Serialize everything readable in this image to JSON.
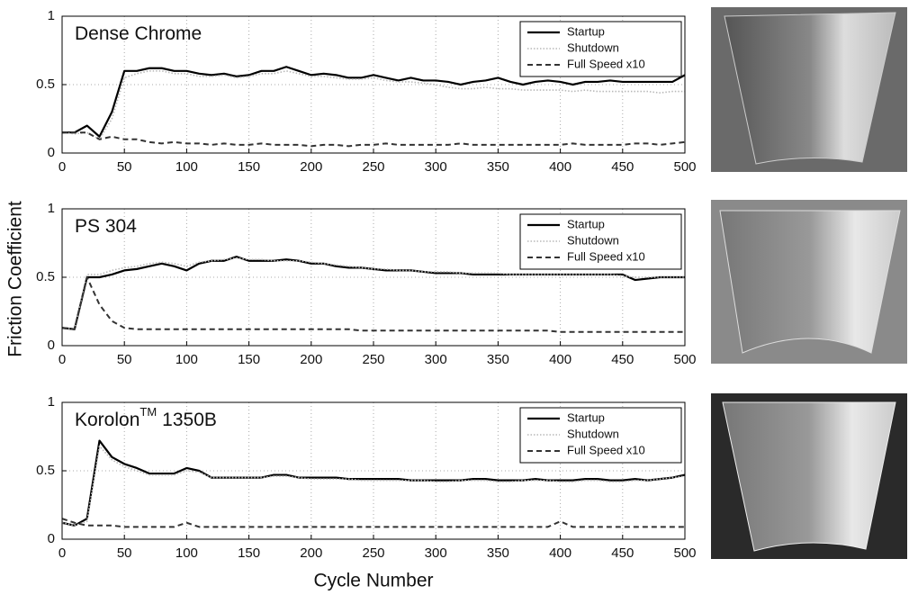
{
  "labels": {
    "xlabel": "Cycle Number",
    "ylabel": "Friction Coefficient"
  },
  "chart_data": [
    {
      "type": "line",
      "title": "Dense Chrome",
      "x": [
        0,
        10,
        20,
        30,
        40,
        50,
        60,
        70,
        80,
        90,
        100,
        110,
        120,
        130,
        140,
        150,
        160,
        170,
        180,
        190,
        200,
        210,
        220,
        230,
        240,
        250,
        260,
        270,
        280,
        290,
        300,
        310,
        320,
        330,
        340,
        350,
        360,
        370,
        380,
        390,
        400,
        410,
        420,
        430,
        440,
        450,
        460,
        470,
        480,
        490,
        500
      ],
      "series": [
        {
          "name": "Startup",
          "color": "#000000",
          "style": "solid",
          "values": [
            0.15,
            0.15,
            0.2,
            0.12,
            0.3,
            0.6,
            0.6,
            0.62,
            0.62,
            0.6,
            0.6,
            0.58,
            0.57,
            0.58,
            0.56,
            0.57,
            0.6,
            0.6,
            0.63,
            0.6,
            0.57,
            0.58,
            0.57,
            0.55,
            0.55,
            0.57,
            0.55,
            0.53,
            0.55,
            0.53,
            0.53,
            0.52,
            0.5,
            0.52,
            0.53,
            0.55,
            0.52,
            0.5,
            0.52,
            0.53,
            0.52,
            0.5,
            0.52,
            0.52,
            0.53,
            0.52,
            0.52,
            0.52,
            0.52,
            0.52,
            0.57
          ]
        },
        {
          "name": "Shutdown",
          "color": "#b8b8b8",
          "style": "dotted",
          "values": [
            0.15,
            0.14,
            0.15,
            0.1,
            0.25,
            0.55,
            0.58,
            0.6,
            0.6,
            0.58,
            0.58,
            0.56,
            0.56,
            0.57,
            0.55,
            0.56,
            0.58,
            0.58,
            0.6,
            0.58,
            0.56,
            0.56,
            0.55,
            0.54,
            0.54,
            0.55,
            0.53,
            0.52,
            0.52,
            0.51,
            0.5,
            0.48,
            0.47,
            0.47,
            0.48,
            0.47,
            0.47,
            0.46,
            0.46,
            0.46,
            0.46,
            0.45,
            0.46,
            0.45,
            0.45,
            0.45,
            0.45,
            0.45,
            0.44,
            0.45,
            0.45
          ]
        },
        {
          "name": "Full Speed x10",
          "color": "#333333",
          "style": "dashed",
          "values": [
            0.15,
            0.15,
            0.15,
            0.1,
            0.12,
            0.1,
            0.1,
            0.08,
            0.07,
            0.08,
            0.07,
            0.07,
            0.06,
            0.07,
            0.06,
            0.06,
            0.07,
            0.06,
            0.06,
            0.06,
            0.05,
            0.06,
            0.06,
            0.05,
            0.06,
            0.06,
            0.07,
            0.06,
            0.06,
            0.06,
            0.06,
            0.06,
            0.07,
            0.06,
            0.06,
            0.06,
            0.06,
            0.06,
            0.06,
            0.06,
            0.06,
            0.07,
            0.06,
            0.06,
            0.06,
            0.06,
            0.07,
            0.07,
            0.06,
            0.07,
            0.08
          ]
        }
      ],
      "xlim": [
        0,
        500
      ],
      "xticks": [
        0,
        50,
        100,
        150,
        200,
        250,
        300,
        350,
        400,
        450,
        500
      ],
      "ylim": [
        0,
        1
      ],
      "yticks": [
        0,
        0.5,
        1
      ],
      "grid": true,
      "legend": "upper right"
    },
    {
      "type": "line",
      "title": "PS 304",
      "x": [
        0,
        10,
        20,
        30,
        40,
        50,
        60,
        70,
        80,
        90,
        100,
        110,
        120,
        130,
        140,
        150,
        160,
        170,
        180,
        190,
        200,
        210,
        220,
        230,
        240,
        250,
        260,
        270,
        280,
        290,
        300,
        310,
        320,
        330,
        340,
        350,
        360,
        370,
        380,
        390,
        400,
        410,
        420,
        430,
        440,
        450,
        460,
        470,
        480,
        490,
        500
      ],
      "series": [
        {
          "name": "Startup",
          "color": "#000000",
          "style": "solid",
          "values": [
            0.13,
            0.12,
            0.5,
            0.5,
            0.52,
            0.55,
            0.56,
            0.58,
            0.6,
            0.58,
            0.55,
            0.6,
            0.62,
            0.62,
            0.65,
            0.62,
            0.62,
            0.62,
            0.63,
            0.62,
            0.6,
            0.6,
            0.58,
            0.57,
            0.57,
            0.56,
            0.55,
            0.55,
            0.55,
            0.54,
            0.53,
            0.53,
            0.53,
            0.52,
            0.52,
            0.52,
            0.52,
            0.52,
            0.52,
            0.52,
            0.52,
            0.52,
            0.52,
            0.52,
            0.52,
            0.52,
            0.48,
            0.49,
            0.5,
            0.5,
            0.5
          ]
        },
        {
          "name": "Shutdown",
          "color": "#b8b8b8",
          "style": "dotted",
          "values": [
            0.13,
            0.12,
            0.52,
            0.52,
            0.55,
            0.57,
            0.58,
            0.6,
            0.61,
            0.6,
            0.58,
            0.61,
            0.62,
            0.63,
            0.64,
            0.63,
            0.63,
            0.62,
            0.62,
            0.62,
            0.61,
            0.6,
            0.59,
            0.58,
            0.57,
            0.56,
            0.56,
            0.55,
            0.55,
            0.54,
            0.54,
            0.54,
            0.53,
            0.53,
            0.53,
            0.53,
            0.52,
            0.52,
            0.52,
            0.52,
            0.52,
            0.52,
            0.52,
            0.52,
            0.52,
            0.51,
            0.5,
            0.5,
            0.5,
            0.5,
            0.5
          ]
        },
        {
          "name": "Full Speed x10",
          "color": "#333333",
          "style": "dashed",
          "values": [
            0.13,
            0.12,
            0.5,
            0.3,
            0.18,
            0.13,
            0.12,
            0.12,
            0.12,
            0.12,
            0.12,
            0.12,
            0.12,
            0.12,
            0.12,
            0.12,
            0.12,
            0.12,
            0.12,
            0.12,
            0.12,
            0.12,
            0.12,
            0.12,
            0.11,
            0.11,
            0.11,
            0.11,
            0.11,
            0.11,
            0.11,
            0.11,
            0.11,
            0.11,
            0.11,
            0.11,
            0.11,
            0.11,
            0.11,
            0.11,
            0.1,
            0.1,
            0.1,
            0.1,
            0.1,
            0.1,
            0.1,
            0.1,
            0.1,
            0.1,
            0.1
          ]
        }
      ],
      "xlim": [
        0,
        500
      ],
      "xticks": [
        0,
        50,
        100,
        150,
        200,
        250,
        300,
        350,
        400,
        450,
        500
      ],
      "ylim": [
        0,
        1
      ],
      "yticks": [
        0,
        0.5,
        1
      ],
      "grid": true,
      "legend": "upper right"
    },
    {
      "type": "line",
      "title": "Korolon",
      "title_superscript": "TM",
      "title_suffix": "1350B",
      "x": [
        0,
        10,
        20,
        30,
        40,
        50,
        60,
        70,
        80,
        90,
        100,
        110,
        120,
        130,
        140,
        150,
        160,
        170,
        180,
        190,
        200,
        210,
        220,
        230,
        240,
        250,
        260,
        270,
        280,
        290,
        300,
        310,
        320,
        330,
        340,
        350,
        360,
        370,
        380,
        390,
        400,
        410,
        420,
        430,
        440,
        450,
        460,
        470,
        480,
        490,
        500
      ],
      "series": [
        {
          "name": "Startup",
          "color": "#000000",
          "style": "solid",
          "values": [
            0.12,
            0.1,
            0.15,
            0.72,
            0.6,
            0.55,
            0.52,
            0.48,
            0.48,
            0.48,
            0.52,
            0.5,
            0.45,
            0.45,
            0.45,
            0.45,
            0.45,
            0.47,
            0.47,
            0.45,
            0.45,
            0.45,
            0.45,
            0.44,
            0.44,
            0.44,
            0.44,
            0.44,
            0.43,
            0.43,
            0.43,
            0.43,
            0.43,
            0.44,
            0.44,
            0.43,
            0.43,
            0.43,
            0.44,
            0.43,
            0.43,
            0.43,
            0.44,
            0.44,
            0.43,
            0.43,
            0.44,
            0.43,
            0.44,
            0.45,
            0.47
          ]
        },
        {
          "name": "Shutdown",
          "color": "#b8b8b8",
          "style": "dotted",
          "values": [
            0.12,
            0.1,
            0.13,
            0.68,
            0.58,
            0.53,
            0.5,
            0.47,
            0.47,
            0.47,
            0.5,
            0.49,
            0.45,
            0.45,
            0.45,
            0.45,
            0.45,
            0.46,
            0.46,
            0.45,
            0.44,
            0.44,
            0.44,
            0.44,
            0.43,
            0.43,
            0.43,
            0.43,
            0.43,
            0.43,
            0.42,
            0.42,
            0.43,
            0.43,
            0.43,
            0.42,
            0.42,
            0.43,
            0.43,
            0.43,
            0.42,
            0.42,
            0.43,
            0.43,
            0.42,
            0.42,
            0.43,
            0.43,
            0.44,
            0.45,
            0.46
          ]
        },
        {
          "name": "Full Speed x10",
          "color": "#333333",
          "style": "dashed",
          "values": [
            0.15,
            0.12,
            0.1,
            0.1,
            0.1,
            0.09,
            0.09,
            0.09,
            0.09,
            0.09,
            0.12,
            0.09,
            0.09,
            0.09,
            0.09,
            0.09,
            0.09,
            0.09,
            0.09,
            0.09,
            0.09,
            0.09,
            0.09,
            0.09,
            0.09,
            0.09,
            0.09,
            0.09,
            0.09,
            0.09,
            0.09,
            0.09,
            0.09,
            0.09,
            0.09,
            0.09,
            0.09,
            0.09,
            0.09,
            0.09,
            0.13,
            0.09,
            0.09,
            0.09,
            0.09,
            0.09,
            0.09,
            0.09,
            0.09,
            0.09,
            0.09
          ]
        }
      ],
      "xlim": [
        0,
        500
      ],
      "xticks": [
        0,
        50,
        100,
        150,
        200,
        250,
        300,
        350,
        400,
        450,
        500
      ],
      "ylim": [
        0,
        1
      ],
      "yticks": [
        0,
        0.5,
        1
      ],
      "grid": true,
      "legend": "upper right"
    }
  ]
}
